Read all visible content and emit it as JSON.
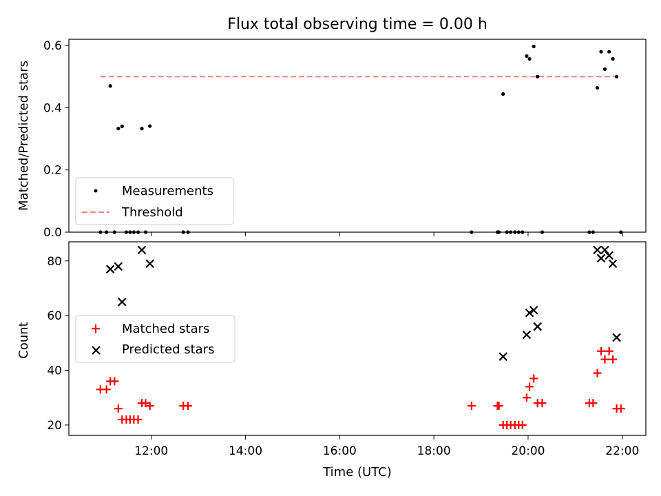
{
  "title": "Flux total observing time = 0.00 h",
  "colors": {
    "measurement": "#000000",
    "threshold": "#ff8080",
    "matched": "#ff0000",
    "predicted": "#000000"
  },
  "chart_data": [
    {
      "type": "scatter",
      "panel": "top",
      "ylabel": "Matched/Predicted stars",
      "ylim": [
        0,
        0.62
      ],
      "yticks": [
        "0.0",
        "0.2",
        "0.4",
        "0.6"
      ],
      "xlim_hours": [
        10.25,
        22.5
      ],
      "legend_position": "lower-left",
      "legend": [
        "Measurements",
        "Threshold"
      ],
      "series": [
        {
          "name": "Measurements",
          "marker": "dot",
          "points": [
            [
              10.92,
              0.0
            ],
            [
              11.05,
              0.0
            ],
            [
              11.13,
              0.47
            ],
            [
              11.22,
              0.0
            ],
            [
              11.3,
              0.333
            ],
            [
              11.38,
              0.34
            ],
            [
              11.47,
              0.0
            ],
            [
              11.55,
              0.0
            ],
            [
              11.63,
              0.0
            ],
            [
              11.72,
              0.0
            ],
            [
              11.8,
              0.333
            ],
            [
              11.88,
              0.0
            ],
            [
              11.97,
              0.341
            ],
            [
              12.68,
              0.0
            ],
            [
              12.78,
              0.0
            ],
            [
              18.8,
              0.0
            ],
            [
              19.35,
              0.0
            ],
            [
              19.38,
              0.0
            ],
            [
              19.47,
              0.444
            ],
            [
              19.55,
              0.0
            ],
            [
              19.63,
              0.0
            ],
            [
              19.72,
              0.0
            ],
            [
              19.8,
              0.0
            ],
            [
              19.88,
              0.0
            ],
            [
              19.97,
              0.566
            ],
            [
              20.03,
              0.557
            ],
            [
              20.12,
              0.597
            ],
            [
              20.2,
              0.5
            ],
            [
              20.3,
              0.0
            ],
            [
              21.3,
              0.0
            ],
            [
              21.38,
              0.0
            ],
            [
              21.47,
              0.464
            ],
            [
              21.55,
              0.58
            ],
            [
              21.63,
              0.524
            ],
            [
              21.72,
              0.58
            ],
            [
              21.8,
              0.557
            ],
            [
              21.88,
              0.5
            ],
            [
              21.97,
              0.0
            ]
          ]
        },
        {
          "name": "Threshold",
          "marker": "dashed-line",
          "x": [
            10.92,
            21.92
          ],
          "y": [
            0.5,
            0.5
          ]
        }
      ]
    },
    {
      "type": "scatter",
      "panel": "bottom",
      "xlabel": "Time (UTC)",
      "ylabel": "Count",
      "ylim": [
        16.2,
        87
      ],
      "yticks": [
        "20",
        "40",
        "60",
        "80"
      ],
      "xticks": [
        "12:00",
        "14:00",
        "16:00",
        "18:00",
        "20:00",
        "22:00"
      ],
      "xtick_hours": [
        12,
        14,
        16,
        18,
        20,
        22
      ],
      "legend_position": "center-left",
      "legend": [
        "Matched stars",
        "Predicted stars"
      ],
      "series": [
        {
          "name": "Matched stars",
          "marker": "plus",
          "points": [
            [
              10.92,
              33
            ],
            [
              11.05,
              33
            ],
            [
              11.13,
              36
            ],
            [
              11.22,
              36
            ],
            [
              11.3,
              26
            ],
            [
              11.38,
              22
            ],
            [
              11.47,
              22
            ],
            [
              11.55,
              22
            ],
            [
              11.63,
              22
            ],
            [
              11.72,
              22
            ],
            [
              11.8,
              28
            ],
            [
              11.88,
              28
            ],
            [
              11.97,
              27
            ],
            [
              12.68,
              27
            ],
            [
              12.78,
              27
            ],
            [
              18.8,
              27
            ],
            [
              19.35,
              27
            ],
            [
              19.38,
              27
            ],
            [
              19.47,
              20
            ],
            [
              19.55,
              20
            ],
            [
              19.63,
              20
            ],
            [
              19.72,
              20
            ],
            [
              19.8,
              20
            ],
            [
              19.88,
              20
            ],
            [
              19.97,
              30
            ],
            [
              20.03,
              34
            ],
            [
              20.12,
              37
            ],
            [
              20.2,
              28
            ],
            [
              20.3,
              28
            ],
            [
              21.3,
              28
            ],
            [
              21.38,
              28
            ],
            [
              21.47,
              39
            ],
            [
              21.55,
              47
            ],
            [
              21.63,
              44
            ],
            [
              21.72,
              47
            ],
            [
              21.8,
              44
            ],
            [
              21.88,
              26
            ],
            [
              21.97,
              26
            ]
          ]
        },
        {
          "name": "Predicted stars",
          "marker": "x",
          "points": [
            [
              11.13,
              77
            ],
            [
              11.3,
              78
            ],
            [
              11.38,
              65
            ],
            [
              11.8,
              84
            ],
            [
              11.97,
              79
            ],
            [
              19.47,
              45
            ],
            [
              19.97,
              53
            ],
            [
              20.03,
              61
            ],
            [
              20.12,
              62
            ],
            [
              20.2,
              56
            ],
            [
              21.47,
              84
            ],
            [
              21.55,
              81
            ],
            [
              21.63,
              84
            ],
            [
              21.72,
              82
            ],
            [
              21.8,
              79
            ],
            [
              21.88,
              52
            ]
          ]
        }
      ]
    }
  ]
}
